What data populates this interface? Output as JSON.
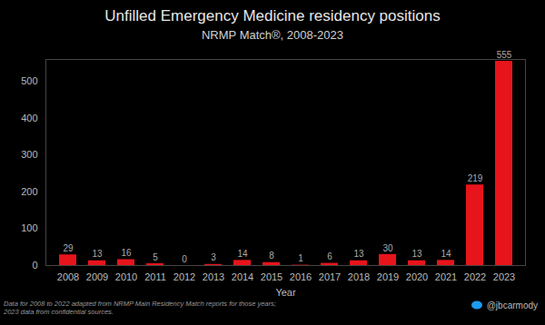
{
  "chart_data": {
    "type": "bar",
    "title": "Unfilled Emergency Medicine residency positions",
    "subtitle": "NRMP Match®, 2008-2023",
    "x_label": "Year",
    "categories": [
      "2008",
      "2009",
      "2010",
      "2011",
      "2012",
      "2013",
      "2014",
      "2015",
      "2016",
      "2017",
      "2018",
      "2019",
      "2020",
      "2021",
      "2022",
      "2023"
    ],
    "values": [
      29,
      13,
      16,
      5,
      0,
      3,
      14,
      8,
      1,
      6,
      13,
      30,
      13,
      14,
      219,
      555
    ],
    "color": "#e8141b",
    "ylim": [
      0,
      560
    ],
    "yticks": [
      0,
      100,
      200,
      300,
      400,
      500
    ],
    "data_labels": true,
    "grid": false,
    "annotations": [
      "Data for 2008 to 2022 adapted from NRMP Main Residency Match reports for those years; 2023 data from confidential sources.",
      "@jbcarmody"
    ]
  }
}
